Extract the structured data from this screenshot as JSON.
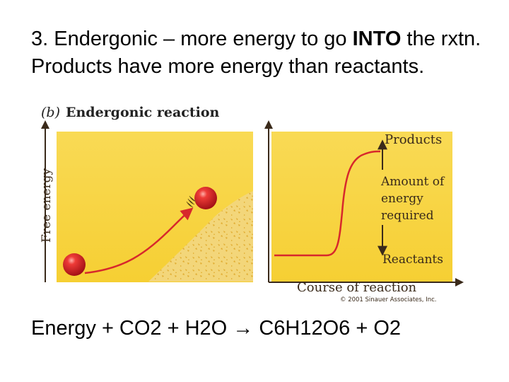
{
  "slide": {
    "heading_part1": "3. Endergonic – more energy to go ",
    "heading_emphasis": "INTO",
    "heading_part2": " the rxtn.  Products have more energy than reactants.",
    "equation": "Energy + CO2 + H2O → C6H12O6 + O2"
  },
  "figure": {
    "panel_tag": "(b)",
    "panel_title": "Endergonic reaction",
    "y_axis_label": "Free energy",
    "x_axis_label": "Course of reaction",
    "products_label": "Products",
    "energy_label_lines": [
      "Amount of",
      "energy",
      "required"
    ],
    "reactants_label": "Reactants",
    "copyright": "© 2001 Sinauer Associates, Inc."
  },
  "colors": {
    "panel_yellow": "#f7d33c",
    "hill": "#e8c23a",
    "ball_red": "#d81f26",
    "curve_red": "#d7282c",
    "label_brown": "#3a2a1a"
  }
}
